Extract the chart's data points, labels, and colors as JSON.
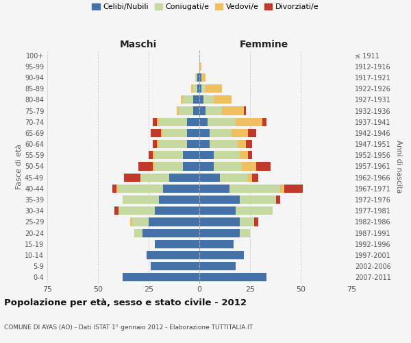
{
  "age_groups": [
    "0-4",
    "5-9",
    "10-14",
    "15-19",
    "20-24",
    "25-29",
    "30-34",
    "35-39",
    "40-44",
    "45-49",
    "50-54",
    "55-59",
    "60-64",
    "65-69",
    "70-74",
    "75-79",
    "80-84",
    "85-89",
    "90-94",
    "95-99",
    "100+"
  ],
  "birth_years": [
    "2007-2011",
    "2002-2006",
    "1997-2001",
    "1992-1996",
    "1987-1991",
    "1982-1986",
    "1977-1981",
    "1972-1976",
    "1967-1971",
    "1962-1966",
    "1957-1961",
    "1952-1956",
    "1947-1951",
    "1942-1946",
    "1937-1941",
    "1932-1936",
    "1927-1931",
    "1922-1926",
    "1917-1921",
    "1912-1916",
    "≤ 1911"
  ],
  "maschi": {
    "celibi": [
      38,
      24,
      26,
      22,
      28,
      25,
      22,
      20,
      18,
      15,
      8,
      8,
      6,
      6,
      6,
      3,
      3,
      1,
      1,
      0,
      0
    ],
    "coniugati": [
      0,
      0,
      0,
      0,
      4,
      8,
      18,
      18,
      22,
      14,
      14,
      14,
      14,
      12,
      14,
      7,
      5,
      2,
      1,
      0,
      0
    ],
    "vedovi": [
      0,
      0,
      0,
      0,
      0,
      1,
      0,
      0,
      1,
      0,
      1,
      1,
      1,
      1,
      1,
      1,
      1,
      1,
      0,
      0,
      0
    ],
    "divorziati": [
      0,
      0,
      0,
      0,
      0,
      0,
      2,
      0,
      2,
      8,
      7,
      2,
      2,
      5,
      2,
      0,
      0,
      0,
      0,
      0,
      0
    ]
  },
  "femmine": {
    "nubili": [
      33,
      18,
      22,
      17,
      20,
      20,
      18,
      20,
      15,
      10,
      7,
      7,
      5,
      5,
      4,
      3,
      2,
      1,
      1,
      0,
      0
    ],
    "coniugate": [
      0,
      0,
      0,
      0,
      5,
      7,
      18,
      18,
      25,
      14,
      14,
      13,
      14,
      11,
      14,
      8,
      5,
      2,
      0,
      0,
      0
    ],
    "vedove": [
      0,
      0,
      0,
      0,
      0,
      0,
      0,
      0,
      2,
      2,
      7,
      4,
      4,
      8,
      13,
      11,
      9,
      8,
      2,
      1,
      0
    ],
    "divorziate": [
      0,
      0,
      0,
      0,
      0,
      2,
      0,
      2,
      9,
      3,
      7,
      2,
      3,
      4,
      2,
      1,
      0,
      0,
      0,
      0,
      0
    ]
  },
  "colors": {
    "celibi": "#4472a8",
    "coniugati": "#c5d9a0",
    "vedovi": "#f0c060",
    "divorziati": "#c0392b"
  },
  "legend_labels": [
    "Celibi/Nubili",
    "Coniugati/e",
    "Vedovi/e",
    "Divorziati/e"
  ],
  "title": "Popolazione per età, sesso e stato civile - 2012",
  "subtitle": "COMUNE DI AYAS (AO) - Dati ISTAT 1° gennaio 2012 - Elaborazione TUTTITALIA.IT",
  "xlabel_left": "Maschi",
  "xlabel_right": "Femmine",
  "ylabel_left": "Fasce di età",
  "ylabel_right": "Anni di nascita",
  "xlim": 75,
  "bg_color": "#f5f5f5",
  "grid_color": "#cccccc"
}
